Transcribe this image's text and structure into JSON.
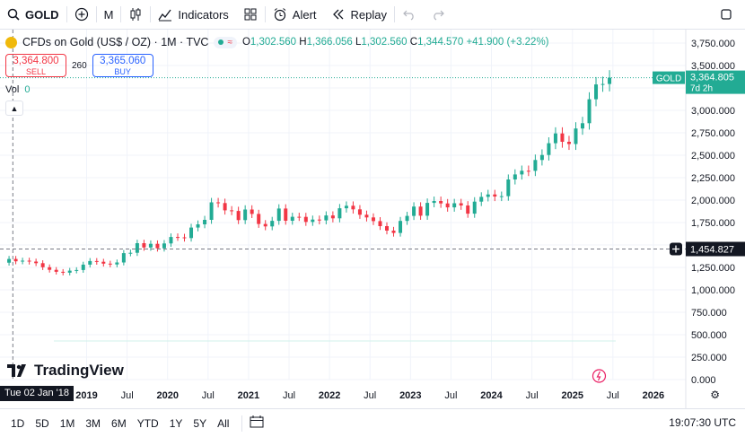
{
  "toolbar": {
    "symbol": "GOLD",
    "interval": "M",
    "indicators_label": "Indicators",
    "alert_label": "Alert",
    "replay_label": "Replay"
  },
  "legend": {
    "title": "CFDs on Gold (US$ / OZ) · 1M · TVC",
    "o_label": "O",
    "o_value": "1,302.560",
    "h_label": "H",
    "h_value": "1,366.056",
    "l_label": "L",
    "l_value": "1,302.560",
    "c_label": "C",
    "c_value": "1,344.570",
    "change": "+41.900 (+3.22%)"
  },
  "trade": {
    "sell_price": "3,364.800",
    "sell_label": "SELL",
    "spread": "260",
    "buy_price": "3,365.060",
    "buy_label": "BUY"
  },
  "volume": {
    "label": "Vol",
    "value": "0"
  },
  "price_tag": {
    "symbol": "GOLD",
    "price": "3,364.805",
    "countdown": "7d 2h"
  },
  "crosshair": {
    "price": "1,454.827",
    "date": "Tue 02 Jan '18"
  },
  "branding": {
    "logo_text": "TradingView"
  },
  "ranges": [
    "1D",
    "5D",
    "1M",
    "3M",
    "6M",
    "YTD",
    "1Y",
    "5Y",
    "All"
  ],
  "clock": "19:07:30 UTC",
  "colors": {
    "up": "#22ab94",
    "down": "#f23645",
    "grid": "#f0f3fa"
  },
  "chart_data": {
    "type": "candlestick",
    "title": "CFDs on Gold (US$ / OZ) · 1M · TVC",
    "y_ticks": [
      0,
      250,
      500,
      750,
      1000,
      1250,
      1500,
      1750,
      2000,
      2250,
      2500,
      2750,
      3000,
      3250,
      3500,
      3750
    ],
    "y_tick_labels": [
      "0.000",
      "250.000",
      "500.000",
      "750.000",
      "1,000.000",
      "1,250.000",
      "1,500.000",
      "1,750.000",
      "2,000.000",
      "2,250.000",
      "2,500.000",
      "2,750.000",
      "3,000.000",
      "3,250.000",
      "3,500.000",
      "3,750.000"
    ],
    "ylim": [
      0,
      3900
    ],
    "x_ticks": [
      {
        "t": 2019.0,
        "label": "2019",
        "bold": true
      },
      {
        "t": 2019.5,
        "label": "Jul",
        "bold": false
      },
      {
        "t": 2020.0,
        "label": "2020",
        "bold": true
      },
      {
        "t": 2020.5,
        "label": "Jul",
        "bold": false
      },
      {
        "t": 2021.0,
        "label": "2021",
        "bold": true
      },
      {
        "t": 2021.5,
        "label": "Jul",
        "bold": false
      },
      {
        "t": 2022.0,
        "label": "2022",
        "bold": true
      },
      {
        "t": 2022.5,
        "label": "Jul",
        "bold": false
      },
      {
        "t": 2023.0,
        "label": "2023",
        "bold": true
      },
      {
        "t": 2023.5,
        "label": "Jul",
        "bold": false
      },
      {
        "t": 2024.0,
        "label": "2024",
        "bold": true
      },
      {
        "t": 2024.5,
        "label": "Jul",
        "bold": false
      },
      {
        "t": 2025.0,
        "label": "2025",
        "bold": true
      },
      {
        "t": 2025.5,
        "label": "Jul",
        "bold": false
      },
      {
        "t": 2026.0,
        "label": "2026",
        "bold": true
      }
    ],
    "xlim": [
      2017.93,
      2026.4
    ],
    "start": "2018-01",
    "close": [
      1344,
      1318,
      1325,
      1315,
      1297,
      1252,
      1223,
      1201,
      1191,
      1214,
      1221,
      1281,
      1321,
      1313,
      1292,
      1283,
      1305,
      1409,
      1413,
      1520,
      1472,
      1513,
      1463,
      1517,
      1589,
      1585,
      1577,
      1694,
      1730,
      1780,
      1975,
      1967,
      1886,
      1879,
      1777,
      1895,
      1846,
      1734,
      1707,
      1769,
      1906,
      1770,
      1814,
      1813,
      1757,
      1783,
      1774,
      1829,
      1797,
      1909,
      1937,
      1897,
      1837,
      1807,
      1766,
      1710,
      1660,
      1634,
      1768,
      1824,
      1928,
      1826,
      1969,
      1990,
      1963,
      1919,
      1965,
      1940,
      1849,
      1983,
      2036,
      2063,
      2040,
      2044,
      2230,
      2286,
      2327,
      2326,
      2447,
      2503,
      2634,
      2743,
      2650,
      2625,
      2798,
      2857,
      3124,
      3289,
      3294,
      3364
    ]
  }
}
